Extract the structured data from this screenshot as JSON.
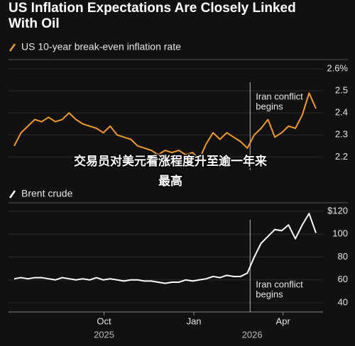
{
  "chart_data": [
    {
      "type": "line",
      "title": "US Inflation Expectations Are Closely Linked With Oil",
      "series": [
        {
          "name": "US 10-year break-even inflation rate",
          "color": "#f39a2b",
          "values": [
            2.25,
            2.31,
            2.34,
            2.37,
            2.36,
            2.38,
            2.36,
            2.37,
            2.4,
            2.37,
            2.35,
            2.34,
            2.33,
            2.31,
            2.34,
            2.3,
            2.29,
            2.28,
            2.25,
            2.24,
            2.23,
            2.21,
            2.23,
            2.22,
            2.23,
            2.21,
            2.22,
            2.19,
            2.26,
            2.31,
            2.28,
            2.31,
            2.29,
            2.27,
            2.24,
            2.3,
            2.33,
            2.37,
            2.29,
            2.31,
            2.34,
            2.33,
            2.39,
            2.49,
            2.42
          ]
        }
      ],
      "xlim": [
        0,
        44
      ],
      "ylim": [
        2.14,
        2.61
      ],
      "yticks": [
        2.2,
        2.3,
        2.4,
        2.5,
        {
          "value": 2.6,
          "label": "2.6%"
        }
      ],
      "grid": true,
      "annotation": {
        "x": 34.4,
        "text": [
          "Iran conflict",
          "begins"
        ]
      }
    },
    {
      "type": "line",
      "series": [
        {
          "name": "Brent crude",
          "color": "#ffffff",
          "values": [
            61,
            62,
            61,
            62,
            62,
            61,
            60,
            62,
            61,
            60,
            61,
            60,
            62,
            60,
            61,
            60,
            59,
            60,
            60,
            59,
            59,
            58,
            57,
            58,
            58,
            60,
            59,
            60,
            61,
            63,
            62,
            64,
            63,
            63,
            66,
            80,
            92,
            98,
            104,
            103,
            108,
            96,
            108,
            118,
            101
          ]
        }
      ],
      "xlim": [
        0,
        44
      ],
      "ylim": [
        32,
        128
      ],
      "yticks": [
        40,
        60,
        80,
        100,
        {
          "value": 120,
          "label": "$120"
        }
      ],
      "xticks": [
        {
          "value": 13.1,
          "label": "Oct"
        },
        {
          "value": 26.2,
          "label": "Jan"
        },
        {
          "value": 39.2,
          "label": "Apr"
        }
      ],
      "xgroups": [
        {
          "value": 13.1,
          "label": "2025"
        },
        {
          "value": 34.7,
          "label": "2026"
        }
      ],
      "grid": true,
      "annotation": {
        "x": 34.4,
        "text": [
          "Iran conflict",
          "begins"
        ]
      }
    }
  ],
  "overlay": [
    "交易员对美元看涨程度升至逾一年来",
    "最高"
  ]
}
